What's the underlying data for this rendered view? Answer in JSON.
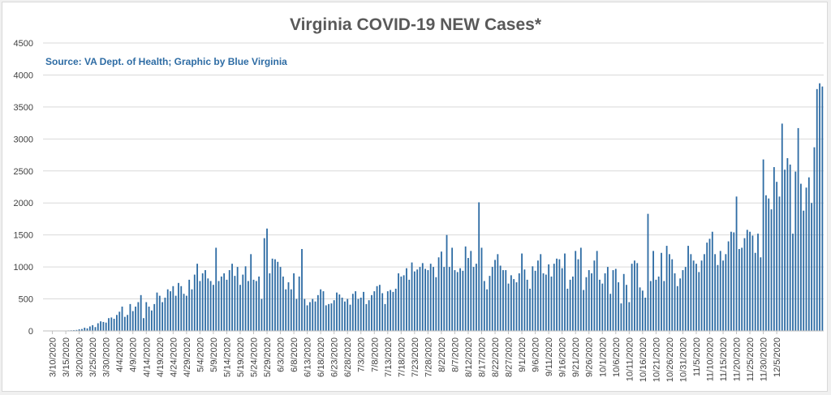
{
  "chart_data": {
    "type": "bar",
    "title": "Virginia COVID-19 NEW Cases*",
    "subtitle": "Source: VA Dept. of Health; Graphic by Blue Virginia",
    "xlabel": "",
    "ylabel": "",
    "ylim": [
      0,
      4500
    ],
    "yticks": [
      0,
      500,
      1000,
      1500,
      2000,
      2500,
      3000,
      3500,
      4000,
      4500
    ],
    "grid": true,
    "legend": "none",
    "start_date": "3/7/2020",
    "x_tick_labels": [
      "3/10/2020",
      "3/15/2020",
      "3/20/2020",
      "3/25/2020",
      "3/30/2020",
      "4/4/2020",
      "4/9/2020",
      "4/14/2020",
      "4/19/2020",
      "4/24/2020",
      "4/29/2020",
      "5/4/2020",
      "5/9/2020",
      "5/14/2020",
      "5/19/2020",
      "5/24/2020",
      "5/29/2020",
      "6/3/2020",
      "6/8/2020",
      "6/13/2020",
      "6/18/2020",
      "6/23/2020",
      "6/28/2020",
      "7/3/2020",
      "7/8/2020",
      "7/13/2020",
      "7/18/2020",
      "7/23/2020",
      "7/28/2020",
      "8/2/2020",
      "8/7/2020",
      "8/12/2020",
      "8/17/2020",
      "8/22/2020",
      "8/27/2020",
      "9/1/2020",
      "9/6/2020",
      "9/11/2020",
      "9/16/2020",
      "9/21/2020",
      "9/26/2020",
      "10/1/2020",
      "10/6/2020",
      "10/11/2020",
      "10/16/2020",
      "10/21/2020",
      "10/26/2020",
      "10/31/2020",
      "11/5/2020",
      "11/10/2020",
      "11/15/2020",
      "11/20/2020",
      "11/25/2020",
      "11/30/2020",
      "12/5/2020"
    ],
    "values": [
      2,
      2,
      2,
      3,
      3,
      4,
      5,
      4,
      6,
      8,
      10,
      12,
      15,
      25,
      30,
      50,
      40,
      70,
      90,
      60,
      120,
      150,
      140,
      130,
      200,
      210,
      190,
      250,
      300,
      380,
      220,
      250,
      420,
      310,
      380,
      450,
      560,
      200,
      450,
      380,
      320,
      420,
      600,
      550,
      450,
      520,
      650,
      620,
      700,
      550,
      750,
      700,
      580,
      550,
      800,
      650,
      880,
      1050,
      780,
      900,
      950,
      820,
      780,
      720,
      1300,
      780,
      850,
      900,
      800,
      950,
      1050,
      860,
      1000,
      720,
      880,
      1010,
      780,
      1200,
      800,
      780,
      850,
      500,
      1450,
      1600,
      900,
      1130,
      1120,
      1080,
      1000,
      850,
      650,
      760,
      650,
      900,
      500,
      850,
      1280,
      500,
      400,
      450,
      500,
      460,
      560,
      650,
      620,
      400,
      420,
      430,
      480,
      600,
      570,
      520,
      460,
      500,
      410,
      580,
      620,
      500,
      520,
      610,
      420,
      480,
      560,
      620,
      700,
      720,
      590,
      420,
      620,
      640,
      610,
      660,
      900,
      850,
      870,
      980,
      800,
      1070,
      930,
      960,
      1000,
      1060,
      970,
      950,
      1050,
      1000,
      840,
      1150,
      1240,
      1000,
      1500,
      1000,
      1300,
      950,
      920,
      980,
      940,
      1320,
      1140,
      1250,
      1000,
      1050,
      2010,
      1300,
      780,
      650,
      860,
      1000,
      1110,
      1200,
      1020,
      950,
      950,
      740,
      870,
      810,
      760,
      900,
      1210,
      960,
      800,
      660,
      1010,
      940,
      1100,
      1200,
      900,
      880,
      1040,
      850,
      1050,
      1130,
      1120,
      980,
      1210,
      660,
      800,
      850,
      1250,
      1120,
      1300,
      640,
      840,
      950,
      900,
      1100,
      1250,
      800,
      740,
      900,
      1000,
      580,
      950,
      970,
      760,
      430,
      890,
      720,
      450,
      1050,
      1100,
      1060,
      680,
      630,
      520,
      1830,
      780,
      1250,
      800,
      850,
      1220,
      780,
      1330,
      1200,
      1120,
      900,
      700,
      820,
      950,
      1000,
      1330,
      1200,
      1100,
      1050,
      920,
      1100,
      1200,
      1380,
      1440,
      1550,
      1200,
      1030,
      1250,
      1100,
      1200,
      1400,
      1550,
      1540,
      2100,
      1280,
      1300,
      1450,
      1580,
      1550,
      1490,
      1220,
      1520,
      1150,
      2680,
      2120,
      2070,
      1900,
      2560,
      2330,
      2100,
      3240,
      2520,
      2700,
      2600,
      1520,
      2490,
      3170,
      2300,
      1880,
      2240,
      2400,
      2000,
      2870,
      3780,
      3870,
      3820
    ]
  }
}
